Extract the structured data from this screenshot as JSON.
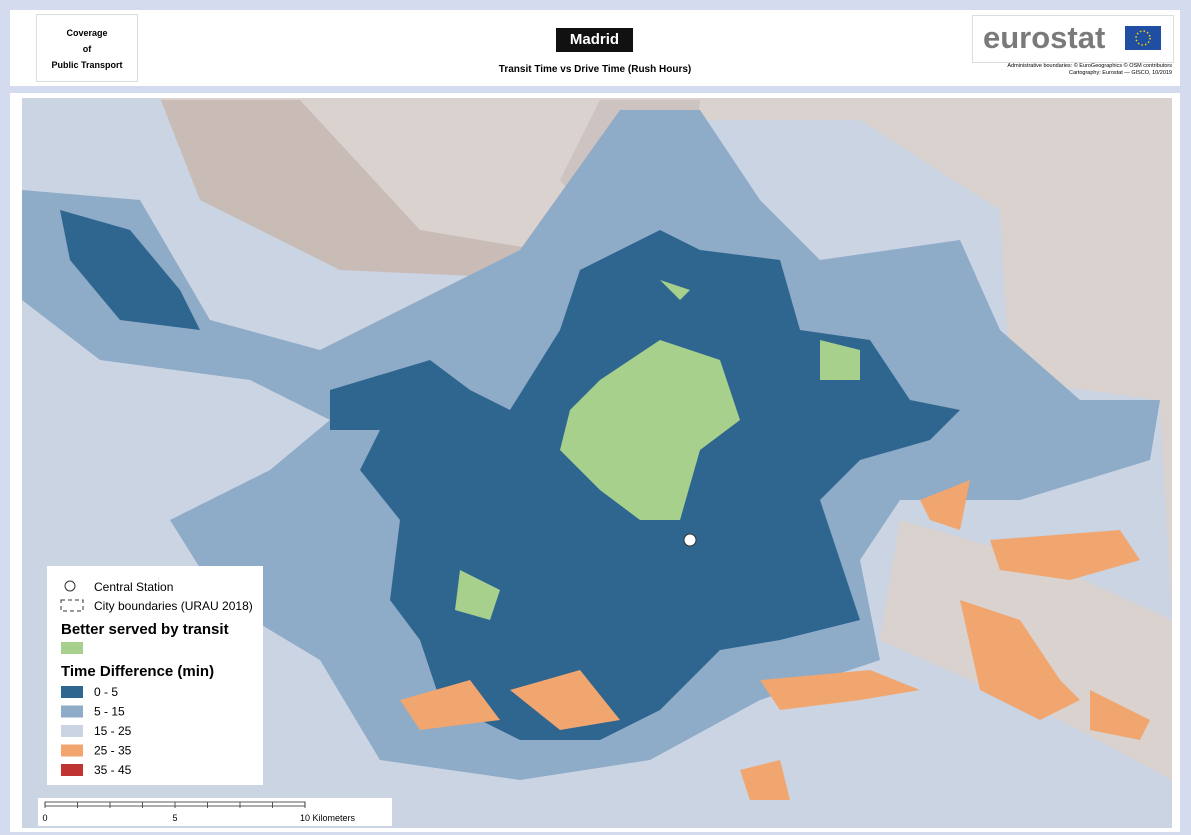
{
  "header": {
    "left_title": [
      "Coverage",
      "of",
      "Public Transport"
    ],
    "city": "Madrid",
    "subtitle": "Transit Time vs Drive Time (Rush Hours)",
    "logo": "eurostat",
    "credits": [
      "Administrative boundaries: © EuroGeographics © OSM contributors",
      "Cartography: Eurostat — GISCO, 10/2019"
    ]
  },
  "legend": {
    "symbols": [
      "Central Station",
      "City boundaries (URAU 2018)"
    ],
    "better_title": "Better served by transit",
    "better_color": "#a8d08d",
    "time_title": "Time Difference (min)",
    "classes": [
      {
        "label": "0 - 5",
        "color": "#2f6690"
      },
      {
        "label": "5 - 15",
        "color": "#8eabc8"
      },
      {
        "label": "15 - 25",
        "color": "#cbd4e3"
      },
      {
        "label": "25 - 35",
        "color": "#f1a56f"
      },
      {
        "label": "35 - 45",
        "color": "#bf3333"
      }
    ]
  },
  "scale_bar": {
    "labels": [
      "0",
      "5",
      "10 Kilometers"
    ]
  }
}
